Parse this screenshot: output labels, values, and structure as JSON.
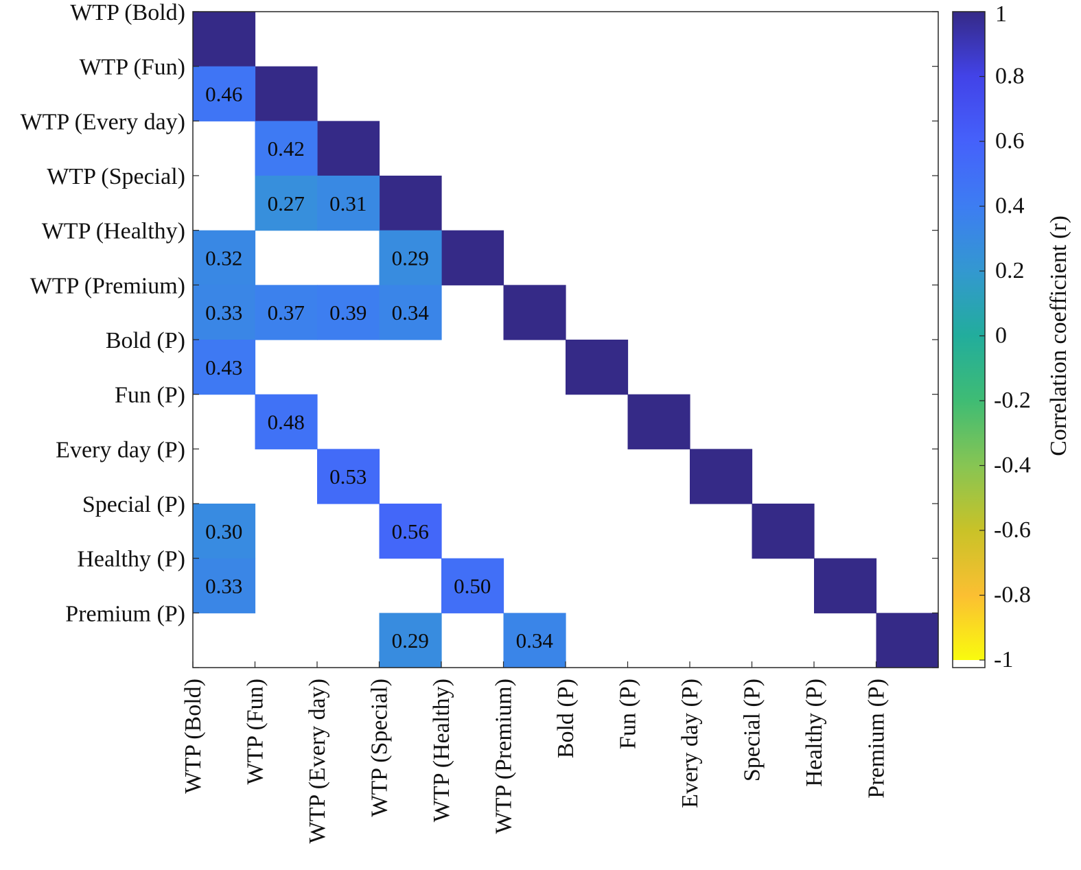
{
  "chart_data": {
    "type": "heatmap",
    "title": "",
    "categories": [
      "WTP (Bold)",
      "WTP (Fun)",
      "WTP (Every day)",
      "WTP (Special)",
      "WTP (Healthy)",
      "WTP (Premium)",
      "Bold (P)",
      "Fun (P)",
      "Every day (P)",
      "Special (P)",
      "Healthy (P)",
      "Premium (P)"
    ],
    "diagonal_value": 1,
    "cells": [
      {
        "row": 1,
        "col": 0,
        "value": 0.46,
        "label": "0.46"
      },
      {
        "row": 2,
        "col": 1,
        "value": 0.42,
        "label": "0.42"
      },
      {
        "row": 3,
        "col": 1,
        "value": 0.27,
        "label": "0.27"
      },
      {
        "row": 3,
        "col": 2,
        "value": 0.31,
        "label": "0.31"
      },
      {
        "row": 4,
        "col": 0,
        "value": 0.32,
        "label": "0.32"
      },
      {
        "row": 4,
        "col": 3,
        "value": 0.29,
        "label": "0.29"
      },
      {
        "row": 5,
        "col": 0,
        "value": 0.33,
        "label": "0.33"
      },
      {
        "row": 5,
        "col": 1,
        "value": 0.37,
        "label": "0.37"
      },
      {
        "row": 5,
        "col": 2,
        "value": 0.39,
        "label": "0.39"
      },
      {
        "row": 5,
        "col": 3,
        "value": 0.34,
        "label": "0.34"
      },
      {
        "row": 6,
        "col": 0,
        "value": 0.43,
        "label": "0.43"
      },
      {
        "row": 7,
        "col": 1,
        "value": 0.48,
        "label": "0.48"
      },
      {
        "row": 8,
        "col": 2,
        "value": 0.53,
        "label": "0.53"
      },
      {
        "row": 9,
        "col": 0,
        "value": 0.3,
        "label": "0.30"
      },
      {
        "row": 9,
        "col": 3,
        "value": 0.56,
        "label": "0.56"
      },
      {
        "row": 10,
        "col": 0,
        "value": 0.33,
        "label": "0.33"
      },
      {
        "row": 10,
        "col": 4,
        "value": 0.5,
        "label": "0.50"
      },
      {
        "row": 11,
        "col": 3,
        "value": 0.29,
        "label": "0.29"
      },
      {
        "row": 11,
        "col": 5,
        "value": 0.34,
        "label": "0.34"
      }
    ],
    "colorbar": {
      "label": "Correlation coefficient (r)",
      "range": [
        -1,
        1
      ],
      "ticks": [
        "1",
        "0.8",
        "0.6",
        "0.4",
        "0.2",
        "0",
        "-0.2",
        "-0.4",
        "-0.6",
        "-0.8",
        "-1"
      ],
      "colormap": "parula",
      "stops": [
        "#f9fb0e",
        "#fbbf32",
        "#c9c228",
        "#87c553",
        "#3fbc74",
        "#22ad9c",
        "#3398d0",
        "#3d7df2",
        "#4561fb",
        "#4243e8",
        "#352a87"
      ]
    },
    "empty_cell_color": "#ffffff",
    "grid": false
  }
}
